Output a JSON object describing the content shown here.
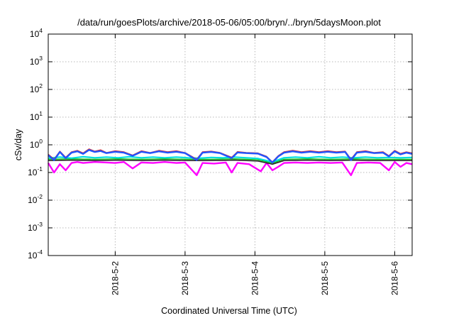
{
  "chart_data": {
    "type": "line",
    "title": "/data/run/goesPlots/archive/2018-05-06/05:00/bryn/../bryn/5daysMoon.plot",
    "xlabel": "Coordinated Universal Time (UTC)",
    "ylabel": "cSv/day",
    "yscale": "log",
    "ylim": [
      0.0001,
      10000
    ],
    "yticks": [
      {
        "base": "10",
        "exp": "4",
        "value": 10000
      },
      {
        "base": "10",
        "exp": "3",
        "value": 1000
      },
      {
        "base": "10",
        "exp": "2",
        "value": 100
      },
      {
        "base": "10",
        "exp": "1",
        "value": 10
      },
      {
        "base": "10",
        "exp": "0",
        "value": 1
      },
      {
        "base": "10",
        "exp": "-1",
        "value": 0.1
      },
      {
        "base": "10",
        "exp": "-2",
        "value": 0.01
      },
      {
        "base": "10",
        "exp": "-3",
        "value": 0.001
      },
      {
        "base": "10",
        "exp": "-4",
        "value": 0.0001
      }
    ],
    "xlim": [
      "2018-05-01T01:00",
      "2018-05-06T06:00"
    ],
    "xticks": [
      {
        "label": "2018-5-2",
        "value": "2018-05-02T00:00"
      },
      {
        "label": "2018-5-3",
        "value": "2018-05-03T00:00"
      },
      {
        "label": "2018-5-4",
        "value": "2018-05-04T00:00"
      },
      {
        "label": "2018-5-5",
        "value": "2018-05-05T00:00"
      },
      {
        "label": "2018-5-6",
        "value": "2018-05-06T00:00"
      }
    ],
    "grid": true,
    "legend": "none",
    "series": [
      {
        "color": "#ff00ff",
        "width": 2.4,
        "values": [
          [
            "2018-05-01T01:00",
            0.22
          ],
          [
            "2018-05-01T03:00",
            0.1
          ],
          [
            "2018-05-01T05:00",
            0.2
          ],
          [
            "2018-05-01T07:00",
            0.12
          ],
          [
            "2018-05-01T09:00",
            0.22
          ],
          [
            "2018-05-01T11:00",
            0.24
          ],
          [
            "2018-05-01T13:00",
            0.22
          ],
          [
            "2018-05-01T17:00",
            0.24
          ],
          [
            "2018-05-01T21:00",
            0.23
          ],
          [
            "2018-05-02T00:00",
            0.22
          ],
          [
            "2018-05-02T03:00",
            0.24
          ],
          [
            "2018-05-02T06:00",
            0.14
          ],
          [
            "2018-05-02T09:00",
            0.23
          ],
          [
            "2018-05-02T13:00",
            0.22
          ],
          [
            "2018-05-02T17:00",
            0.24
          ],
          [
            "2018-05-02T21:00",
            0.22
          ],
          [
            "2018-05-03T00:00",
            0.23
          ],
          [
            "2018-05-03T04:00",
            0.08
          ],
          [
            "2018-05-03T06:00",
            0.22
          ],
          [
            "2018-05-03T10:00",
            0.21
          ],
          [
            "2018-05-03T14:00",
            0.23
          ],
          [
            "2018-05-03T16:00",
            0.1
          ],
          [
            "2018-05-03T18:00",
            0.22
          ],
          [
            "2018-05-03T22:00",
            0.2
          ],
          [
            "2018-05-04T02:00",
            0.11
          ],
          [
            "2018-05-04T04:00",
            0.22
          ],
          [
            "2018-05-04T06:00",
            0.12
          ],
          [
            "2018-05-04T08:00",
            0.16
          ],
          [
            "2018-05-04T10:00",
            0.22
          ],
          [
            "2018-05-04T14:00",
            0.23
          ],
          [
            "2018-05-04T18:00",
            0.22
          ],
          [
            "2018-05-04T22:00",
            0.23
          ],
          [
            "2018-05-05T02:00",
            0.22
          ],
          [
            "2018-05-05T06:00",
            0.23
          ],
          [
            "2018-05-05T09:00",
            0.08
          ],
          [
            "2018-05-05T11:00",
            0.22
          ],
          [
            "2018-05-05T15:00",
            0.23
          ],
          [
            "2018-05-05T19:00",
            0.22
          ],
          [
            "2018-05-05T22:00",
            0.12
          ],
          [
            "2018-05-06T00:00",
            0.24
          ],
          [
            "2018-05-06T02:00",
            0.16
          ],
          [
            "2018-05-06T04:00",
            0.22
          ],
          [
            "2018-05-06T06:00",
            0.2
          ]
        ]
      },
      {
        "color": "#222222",
        "width": 1.6,
        "values": [
          [
            "2018-05-01T01:00",
            0.27
          ],
          [
            "2018-05-01T09:00",
            0.28
          ],
          [
            "2018-05-01T17:00",
            0.27
          ],
          [
            "2018-05-02T01:00",
            0.28
          ],
          [
            "2018-05-02T09:00",
            0.27
          ],
          [
            "2018-05-02T17:00",
            0.28
          ],
          [
            "2018-05-03T01:00",
            0.27
          ],
          [
            "2018-05-03T09:00",
            0.27
          ],
          [
            "2018-05-03T17:00",
            0.28
          ],
          [
            "2018-05-04T01:00",
            0.26
          ],
          [
            "2018-05-04T06:00",
            0.2
          ],
          [
            "2018-05-04T10:00",
            0.27
          ],
          [
            "2018-05-04T18:00",
            0.28
          ],
          [
            "2018-05-05T02:00",
            0.27
          ],
          [
            "2018-05-05T10:00",
            0.28
          ],
          [
            "2018-05-05T18:00",
            0.27
          ],
          [
            "2018-05-06T02:00",
            0.27
          ],
          [
            "2018-05-06T06:00",
            0.27
          ]
        ]
      },
      {
        "color": "#00c000",
        "width": 1.3,
        "values": [
          [
            "2018-05-01T01:00",
            0.3
          ],
          [
            "2018-05-01T09:00",
            0.31
          ],
          [
            "2018-05-01T17:00",
            0.3
          ],
          [
            "2018-05-02T01:00",
            0.31
          ],
          [
            "2018-05-02T09:00",
            0.3
          ],
          [
            "2018-05-02T17:00",
            0.31
          ],
          [
            "2018-05-03T01:00",
            0.3
          ],
          [
            "2018-05-03T09:00",
            0.3
          ],
          [
            "2018-05-03T17:00",
            0.31
          ],
          [
            "2018-05-04T01:00",
            0.29
          ],
          [
            "2018-05-04T06:00",
            0.22
          ],
          [
            "2018-05-04T10:00",
            0.3
          ],
          [
            "2018-05-04T18:00",
            0.31
          ],
          [
            "2018-05-05T02:00",
            0.3
          ],
          [
            "2018-05-05T10:00",
            0.31
          ],
          [
            "2018-05-05T18:00",
            0.3
          ],
          [
            "2018-05-06T02:00",
            0.3
          ],
          [
            "2018-05-06T06:00",
            0.3
          ]
        ]
      },
      {
        "color": "#00dede",
        "width": 2.2,
        "values": [
          [
            "2018-05-01T01:00",
            0.33
          ],
          [
            "2018-05-01T05:00",
            0.36
          ],
          [
            "2018-05-01T09:00",
            0.33
          ],
          [
            "2018-05-01T13:00",
            0.37
          ],
          [
            "2018-05-01T17:00",
            0.34
          ],
          [
            "2018-05-01T21:00",
            0.36
          ],
          [
            "2018-05-02T01:00",
            0.34
          ],
          [
            "2018-05-02T05:00",
            0.37
          ],
          [
            "2018-05-02T09:00",
            0.34
          ],
          [
            "2018-05-02T13:00",
            0.36
          ],
          [
            "2018-05-02T17:00",
            0.34
          ],
          [
            "2018-05-02T21:00",
            0.36
          ],
          [
            "2018-05-03T01:00",
            0.34
          ],
          [
            "2018-05-03T05:00",
            0.33
          ],
          [
            "2018-05-03T09:00",
            0.35
          ],
          [
            "2018-05-03T13:00",
            0.34
          ],
          [
            "2018-05-03T17:00",
            0.36
          ],
          [
            "2018-05-03T21:00",
            0.34
          ],
          [
            "2018-05-04T01:00",
            0.32
          ],
          [
            "2018-05-04T06:00",
            0.24
          ],
          [
            "2018-05-04T10:00",
            0.34
          ],
          [
            "2018-05-04T14:00",
            0.36
          ],
          [
            "2018-05-04T18:00",
            0.34
          ],
          [
            "2018-05-04T22:00",
            0.37
          ],
          [
            "2018-05-05T02:00",
            0.34
          ],
          [
            "2018-05-05T06:00",
            0.36
          ],
          [
            "2018-05-05T10:00",
            0.34
          ],
          [
            "2018-05-05T14:00",
            0.36
          ],
          [
            "2018-05-05T18:00",
            0.34
          ],
          [
            "2018-05-05T22:00",
            0.35
          ],
          [
            "2018-05-06T02:00",
            0.34
          ],
          [
            "2018-05-06T06:00",
            0.35
          ]
        ]
      },
      {
        "color": "#e02020",
        "width": 1.6,
        "values": [
          [
            "2018-05-01T01:00",
            0.45
          ],
          [
            "2018-05-01T03:00",
            0.3
          ],
          [
            "2018-05-01T05:00",
            0.58
          ],
          [
            "2018-05-01T07:00",
            0.35
          ],
          [
            "2018-05-01T09:00",
            0.55
          ],
          [
            "2018-05-01T11:00",
            0.62
          ],
          [
            "2018-05-01T13:00",
            0.5
          ],
          [
            "2018-05-01T15:00",
            0.7
          ],
          [
            "2018-05-01T17:00",
            0.58
          ],
          [
            "2018-05-01T19:00",
            0.65
          ],
          [
            "2018-05-01T21:00",
            0.52
          ],
          [
            "2018-05-02T00:00",
            0.6
          ],
          [
            "2018-05-02T03:00",
            0.55
          ],
          [
            "2018-05-02T06:00",
            0.42
          ],
          [
            "2018-05-02T09:00",
            0.6
          ],
          [
            "2018-05-02T12:00",
            0.52
          ],
          [
            "2018-05-02T15:00",
            0.62
          ],
          [
            "2018-05-02T18:00",
            0.55
          ],
          [
            "2018-05-02T21:00",
            0.6
          ],
          [
            "2018-05-03T00:00",
            0.52
          ],
          [
            "2018-05-03T04:00",
            0.3
          ],
          [
            "2018-05-03T06:00",
            0.55
          ],
          [
            "2018-05-03T09:00",
            0.58
          ],
          [
            "2018-05-03T12:00",
            0.52
          ],
          [
            "2018-05-03T16:00",
            0.35
          ],
          [
            "2018-05-03T18:00",
            0.56
          ],
          [
            "2018-05-03T21:00",
            0.52
          ],
          [
            "2018-05-04T01:00",
            0.5
          ],
          [
            "2018-05-04T04:00",
            0.38
          ],
          [
            "2018-05-04T06:00",
            0.24
          ],
          [
            "2018-05-04T08:00",
            0.4
          ],
          [
            "2018-05-04T10:00",
            0.55
          ],
          [
            "2018-05-04T13:00",
            0.62
          ],
          [
            "2018-05-04T16:00",
            0.55
          ],
          [
            "2018-05-04T19:00",
            0.6
          ],
          [
            "2018-05-04T22:00",
            0.55
          ],
          [
            "2018-05-05T01:00",
            0.6
          ],
          [
            "2018-05-05T04:00",
            0.55
          ],
          [
            "2018-05-05T07:00",
            0.58
          ],
          [
            "2018-05-05T09:00",
            0.3
          ],
          [
            "2018-05-05T11:00",
            0.55
          ],
          [
            "2018-05-05T14:00",
            0.6
          ],
          [
            "2018-05-05T17:00",
            0.52
          ],
          [
            "2018-05-05T20:00",
            0.55
          ],
          [
            "2018-05-05T22:00",
            0.4
          ],
          [
            "2018-05-06T00:00",
            0.62
          ],
          [
            "2018-05-06T02:00",
            0.48
          ],
          [
            "2018-05-06T04:00",
            0.55
          ],
          [
            "2018-05-06T06:00",
            0.5
          ]
        ]
      },
      {
        "color": "#2255ff",
        "width": 2.4,
        "values": [
          [
            "2018-05-01T01:00",
            0.42
          ],
          [
            "2018-05-01T03:00",
            0.28
          ],
          [
            "2018-05-01T05:00",
            0.55
          ],
          [
            "2018-05-01T07:00",
            0.33
          ],
          [
            "2018-05-01T09:00",
            0.52
          ],
          [
            "2018-05-01T11:00",
            0.58
          ],
          [
            "2018-05-01T13:00",
            0.47
          ],
          [
            "2018-05-01T15:00",
            0.65
          ],
          [
            "2018-05-01T17:00",
            0.55
          ],
          [
            "2018-05-01T19:00",
            0.6
          ],
          [
            "2018-05-01T21:00",
            0.5
          ],
          [
            "2018-05-02T00:00",
            0.56
          ],
          [
            "2018-05-02T03:00",
            0.52
          ],
          [
            "2018-05-02T06:00",
            0.4
          ],
          [
            "2018-05-02T09:00",
            0.56
          ],
          [
            "2018-05-02T12:00",
            0.5
          ],
          [
            "2018-05-02T15:00",
            0.58
          ],
          [
            "2018-05-02T18:00",
            0.52
          ],
          [
            "2018-05-02T21:00",
            0.56
          ],
          [
            "2018-05-03T00:00",
            0.5
          ],
          [
            "2018-05-03T04:00",
            0.28
          ],
          [
            "2018-05-03T06:00",
            0.52
          ],
          [
            "2018-05-03T09:00",
            0.55
          ],
          [
            "2018-05-03T12:00",
            0.5
          ],
          [
            "2018-05-03T16:00",
            0.33
          ],
          [
            "2018-05-03T18:00",
            0.53
          ],
          [
            "2018-05-03T21:00",
            0.5
          ],
          [
            "2018-05-04T01:00",
            0.48
          ],
          [
            "2018-05-04T04:00",
            0.36
          ],
          [
            "2018-05-04T06:00",
            0.23
          ],
          [
            "2018-05-04T08:00",
            0.38
          ],
          [
            "2018-05-04T10:00",
            0.52
          ],
          [
            "2018-05-04T13:00",
            0.58
          ],
          [
            "2018-05-04T16:00",
            0.52
          ],
          [
            "2018-05-04T19:00",
            0.56
          ],
          [
            "2018-05-04T22:00",
            0.52
          ],
          [
            "2018-05-05T01:00",
            0.56
          ],
          [
            "2018-05-05T04:00",
            0.52
          ],
          [
            "2018-05-05T07:00",
            0.55
          ],
          [
            "2018-05-05T09:00",
            0.28
          ],
          [
            "2018-05-05T11:00",
            0.52
          ],
          [
            "2018-05-05T14:00",
            0.56
          ],
          [
            "2018-05-05T17:00",
            0.5
          ],
          [
            "2018-05-05T20:00",
            0.52
          ],
          [
            "2018-05-05T22:00",
            0.38
          ],
          [
            "2018-05-06T00:00",
            0.58
          ],
          [
            "2018-05-06T02:00",
            0.45
          ],
          [
            "2018-05-06T04:00",
            0.52
          ],
          [
            "2018-05-06T06:00",
            0.47
          ]
        ]
      }
    ]
  }
}
